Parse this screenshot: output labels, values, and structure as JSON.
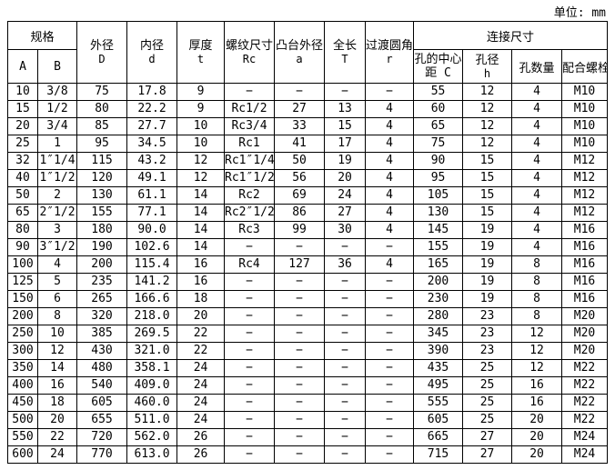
{
  "unit_label": "单位: mm",
  "table": {
    "header": {
      "spec_group": "规格",
      "connection_group": "连接尺寸",
      "sub_a": "A",
      "sub_b": "B",
      "outer_d_label": "外径",
      "outer_d_symbol": "D",
      "inner_d_label": "内径",
      "inner_d_symbol": "d",
      "thickness_label": "厚度",
      "thickness_symbol": "t",
      "thread_label": "螺纹尺寸",
      "thread_symbol": "Rc",
      "boss_label": "凸台外径",
      "boss_symbol": "a",
      "length_label": "全长",
      "length_symbol": "T",
      "fillet_label": "过渡圆角",
      "fillet_symbol": "r",
      "hole_center_line1": "孔的中心",
      "hole_center_line2": "距 C",
      "hole_dia_label": "孔径",
      "hole_dia_symbol": "h",
      "hole_count": "孔数量",
      "bolt": "配合螺栓"
    },
    "rows": [
      [
        "10",
        "3/8",
        "75",
        "17.8",
        "9",
        "−",
        "−",
        "−",
        "−",
        "55",
        "12",
        "4",
        "M10"
      ],
      [
        "15",
        "1/2",
        "80",
        "22.2",
        "9",
        "Rc1/2",
        "27",
        "13",
        "4",
        "60",
        "12",
        "4",
        "M10"
      ],
      [
        "20",
        "3/4",
        "85",
        "27.7",
        "10",
        "Rc3/4",
        "33",
        "15",
        "4",
        "65",
        "12",
        "4",
        "M10"
      ],
      [
        "25",
        "1",
        "95",
        "34.5",
        "10",
        "Rc1",
        "41",
        "17",
        "4",
        "75",
        "12",
        "4",
        "M10"
      ],
      [
        "32",
        "1″1/4",
        "115",
        "43.2",
        "12",
        "Rc1″1/4",
        "50",
        "19",
        "4",
        "90",
        "15",
        "4",
        "M12"
      ],
      [
        "40",
        "1″1/2",
        "120",
        "49.1",
        "12",
        "Rc1″1/2",
        "56",
        "20",
        "4",
        "95",
        "15",
        "4",
        "M12"
      ],
      [
        "50",
        "2",
        "130",
        "61.1",
        "14",
        "Rc2",
        "69",
        "24",
        "4",
        "105",
        "15",
        "4",
        "M12"
      ],
      [
        "65",
        "2″1/2",
        "155",
        "77.1",
        "14",
        "Rc2″1/2",
        "86",
        "27",
        "4",
        "130",
        "15",
        "4",
        "M12"
      ],
      [
        "80",
        "3",
        "180",
        "90.0",
        "14",
        "Rc3",
        "99",
        "30",
        "4",
        "145",
        "19",
        "4",
        "M16"
      ],
      [
        "90",
        "3″1/2",
        "190",
        "102.6",
        "14",
        "−",
        "−",
        "−",
        "−",
        "155",
        "19",
        "4",
        "M16"
      ],
      [
        "100",
        "4",
        "200",
        "115.4",
        "16",
        "Rc4",
        "127",
        "36",
        "4",
        "165",
        "19",
        "8",
        "M16"
      ],
      [
        "125",
        "5",
        "235",
        "141.2",
        "16",
        "−",
        "−",
        "−",
        "−",
        "200",
        "19",
        "8",
        "M16"
      ],
      [
        "150",
        "6",
        "265",
        "166.6",
        "18",
        "−",
        "−",
        "−",
        "−",
        "230",
        "19",
        "8",
        "M16"
      ],
      [
        "200",
        "8",
        "320",
        "218.0",
        "20",
        "−",
        "−",
        "−",
        "−",
        "280",
        "23",
        "8",
        "M20"
      ],
      [
        "250",
        "10",
        "385",
        "269.5",
        "22",
        "−",
        "−",
        "−",
        "−",
        "345",
        "23",
        "12",
        "M20"
      ],
      [
        "300",
        "12",
        "430",
        "321.0",
        "22",
        "−",
        "−",
        "−",
        "−",
        "390",
        "23",
        "12",
        "M20"
      ],
      [
        "350",
        "14",
        "480",
        "358.1",
        "24",
        "−",
        "−",
        "−",
        "−",
        "435",
        "25",
        "12",
        "M22"
      ],
      [
        "400",
        "16",
        "540",
        "409.0",
        "24",
        "−",
        "−",
        "−",
        "−",
        "495",
        "25",
        "16",
        "M22"
      ],
      [
        "450",
        "18",
        "605",
        "460.0",
        "24",
        "−",
        "−",
        "−",
        "−",
        "555",
        "25",
        "16",
        "M22"
      ],
      [
        "500",
        "20",
        "655",
        "511.0",
        "24",
        "−",
        "−",
        "−",
        "−",
        "605",
        "25",
        "20",
        "M22"
      ],
      [
        "550",
        "22",
        "720",
        "562.0",
        "26",
        "−",
        "−",
        "−",
        "−",
        "665",
        "27",
        "20",
        "M24"
      ],
      [
        "600",
        "24",
        "770",
        "613.0",
        "26",
        "−",
        "−",
        "−",
        "−",
        "715",
        "27",
        "20",
        "M24"
      ]
    ]
  }
}
